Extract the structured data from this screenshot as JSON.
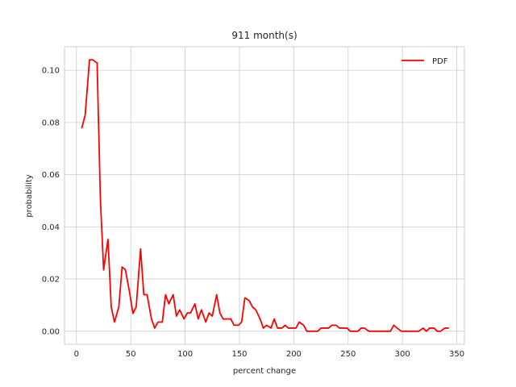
{
  "chart_data": {
    "type": "line",
    "title": "911 month(s)",
    "xlabel": "percent change",
    "ylabel": "probability",
    "xlim": [
      -11,
      357
    ],
    "ylim": [
      -0.005,
      0.109
    ],
    "xticks": [
      0,
      50,
      100,
      150,
      200,
      250,
      300,
      350
    ],
    "yticks": [
      0.0,
      0.02,
      0.04,
      0.06,
      0.08,
      0.1
    ],
    "xtick_labels": [
      "0",
      "50",
      "100",
      "150",
      "200",
      "250",
      "300",
      "350"
    ],
    "ytick_labels": [
      "0.00",
      "0.02",
      "0.04",
      "0.06",
      "0.08",
      "0.10"
    ],
    "grid": true,
    "legend_position": "top-right",
    "series": [
      {
        "name": "PDF",
        "color": "#ff0000",
        "x": [
          5,
          8,
          12,
          15,
          19,
          22,
          25,
          29,
          32,
          35,
          39,
          42,
          45,
          49,
          52,
          55,
          59,
          62,
          65,
          69,
          72,
          75,
          79,
          82,
          85,
          89,
          92,
          95,
          99,
          102,
          105,
          109,
          112,
          115,
          119,
          122,
          125,
          129,
          132,
          135,
          139,
          142,
          145,
          149,
          152,
          155,
          159,
          162,
          165,
          169,
          172,
          175,
          179,
          182,
          185,
          189,
          192,
          195,
          199,
          202,
          205,
          209,
          212,
          215,
          219,
          222,
          225,
          229,
          232,
          235,
          239,
          242,
          245,
          249,
          252,
          255,
          259,
          262,
          265,
          269,
          272,
          275,
          279,
          282,
          285,
          289,
          292,
          295,
          299,
          302,
          305,
          309,
          312,
          315,
          319,
          322,
          325,
          329,
          332,
          335,
          339,
          342
        ],
        "y": [
          0.078,
          0.0828,
          0.104,
          0.104,
          0.1028,
          0.0508,
          0.0235,
          0.0352,
          0.0093,
          0.0035,
          0.0093,
          0.0246,
          0.0236,
          0.0146,
          0.0068,
          0.0094,
          0.0315,
          0.014,
          0.014,
          0.0047,
          0.0012,
          0.0035,
          0.0035,
          0.014,
          0.0105,
          0.014,
          0.0058,
          0.0082,
          0.0047,
          0.007,
          0.007,
          0.0105,
          0.0047,
          0.0082,
          0.0035,
          0.007,
          0.0058,
          0.014,
          0.007,
          0.0047,
          0.0047,
          0.0047,
          0.0023,
          0.0023,
          0.0035,
          0.0128,
          0.0117,
          0.0093,
          0.0082,
          0.0047,
          0.0012,
          0.0023,
          0.0012,
          0.0047,
          0.0012,
          0.0012,
          0.0023,
          0.0012,
          0.0012,
          0.0012,
          0.0035,
          0.0023,
          0.0,
          0.0,
          0.0,
          0.0,
          0.0012,
          0.0012,
          0.0012,
          0.0023,
          0.0023,
          0.0012,
          0.0012,
          0.0012,
          0.0,
          0.0,
          0.0,
          0.0012,
          0.0012,
          0.0,
          0.0,
          0.0,
          0.0,
          0.0,
          0.0,
          0.0,
          0.0023,
          0.0012,
          0.0,
          0.0,
          0.0,
          0.0,
          0.0,
          0.0,
          0.0012,
          0.0,
          0.0012,
          0.0012,
          0.0,
          0.0,
          0.0012,
          0.0012
        ]
      }
    ]
  }
}
